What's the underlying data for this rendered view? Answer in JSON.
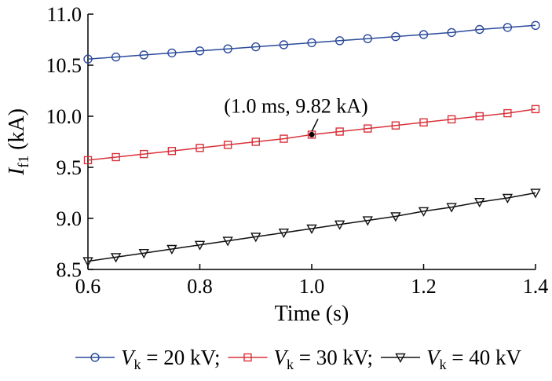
{
  "chart_data": {
    "type": "line",
    "xlabel": "Time (s)",
    "ylabel": {
      "main": "I",
      "sub": "f1",
      "unit": "(kA)"
    },
    "xlim": [
      0.6,
      1.4
    ],
    "ylim": [
      8.5,
      11.0
    ],
    "xticks": [
      "0.6",
      "0.8",
      "1.0",
      "1.2",
      "1.4"
    ],
    "yticks": [
      "8.5",
      "9.0",
      "9.5",
      "10.0",
      "10.5",
      "11.0"
    ],
    "grid": false,
    "legend_position": "bottom",
    "x": [
      0.6,
      0.65,
      0.7,
      0.75,
      0.8,
      0.85,
      0.9,
      0.95,
      1.0,
      1.05,
      1.1,
      1.15,
      1.2,
      1.25,
      1.3,
      1.35,
      1.4
    ],
    "series": [
      {
        "name": {
          "main": "V",
          "sub": "k",
          "rest": " = 20 kV;"
        },
        "color": "#2b4a9b",
        "marker": "circle",
        "values": [
          10.56,
          10.58,
          10.6,
          10.62,
          10.64,
          10.66,
          10.68,
          10.7,
          10.72,
          10.74,
          10.76,
          10.78,
          10.8,
          10.82,
          10.85,
          10.87,
          10.89
        ]
      },
      {
        "name": {
          "main": "V",
          "sub": "k",
          "rest": " = 30 kV;"
        },
        "color": "#d9323a",
        "marker": "square",
        "values": [
          9.57,
          9.6,
          9.63,
          9.66,
          9.69,
          9.72,
          9.75,
          9.78,
          9.82,
          9.85,
          9.88,
          9.91,
          9.94,
          9.97,
          10.0,
          10.03,
          10.07
        ]
      },
      {
        "name": {
          "main": "V",
          "sub": "k",
          "rest": " = 40 kV"
        },
        "color": "#111111",
        "marker": "triangle-down",
        "values": [
          8.58,
          8.62,
          8.66,
          8.7,
          8.74,
          8.78,
          8.82,
          8.86,
          8.9,
          8.94,
          8.98,
          9.02,
          9.07,
          9.11,
          9.16,
          9.2,
          9.25
        ]
      }
    ],
    "annotation": {
      "text": "(1.0 ms, 9.82 kA)",
      "x": 1.0,
      "y": 9.82
    }
  }
}
